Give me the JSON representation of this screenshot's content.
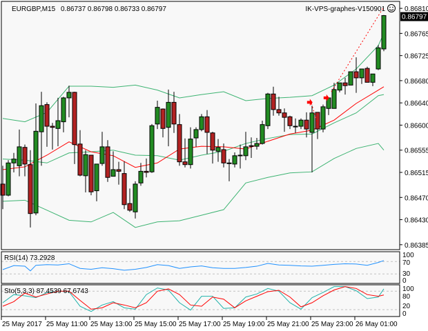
{
  "header": {
    "symbol": "EURGBP,M15",
    "ohlc": "0.86737 0.86798 0.86733 0.86797",
    "expert_name": "IK-VPS-graphes-V150901",
    "expert_icon": "smiley-face-icon"
  },
  "colors": {
    "background": "#f8f8f8",
    "bull_candle": "#228b22",
    "bear_candle": "#b22222",
    "bollinger": "#3cb371",
    "moving_average": "#ff0000",
    "rsi": "#1e90ff",
    "stoch_main": "#20b2aa",
    "stoch_signal": "#ff0000",
    "level_line": "#c0c0c0"
  },
  "chart_data": [
    {
      "type": "candlestick",
      "title": "EURGBP,M15",
      "current_price": "0.86797",
      "y_ticks": [
        "0.86810",
        "0.86765",
        "0.86725",
        "0.86680",
        "0.86640",
        "0.86600",
        "0.86555",
        "0.86515",
        "0.86470",
        "0.86430",
        "0.86385"
      ],
      "x_tick_labels": [
        {
          "index": 0,
          "label": "25 May 2017"
        },
        {
          "index": 8,
          "label": "25 May 11:00"
        },
        {
          "index": 16,
          "label": "25 May 13:00"
        },
        {
          "index": 24,
          "label": "25 May 15:00"
        },
        {
          "index": 32,
          "label": "25 May 17:00"
        },
        {
          "index": 40,
          "label": "25 May 19:00"
        },
        {
          "index": 48,
          "label": "25 May 21:00"
        },
        {
          "index": 56,
          "label": "25 May 23:00"
        },
        {
          "index": 64,
          "label": "26 May 01:00"
        }
      ],
      "candles": [
        [
          0.86494,
          0.86527,
          0.86449,
          0.86474
        ],
        [
          0.86474,
          0.86537,
          0.86472,
          0.86532
        ],
        [
          0.86532,
          0.8655,
          0.86515,
          0.86539
        ],
        [
          0.86527,
          0.86592,
          0.86508,
          0.86561
        ],
        [
          0.8656,
          0.86565,
          0.86508,
          0.8653
        ],
        [
          0.86529,
          0.86555,
          0.86416,
          0.86441
        ],
        [
          0.86442,
          0.86639,
          0.86438,
          0.86589
        ],
        [
          0.86588,
          0.8666,
          0.86527,
          0.86635
        ],
        [
          0.86637,
          0.86641,
          0.86561,
          0.86598
        ],
        [
          0.86598,
          0.86604,
          0.86556,
          0.86596
        ],
        [
          0.86594,
          0.86649,
          0.86562,
          0.86608
        ],
        [
          0.86606,
          0.86651,
          0.86587,
          0.86649
        ],
        [
          0.86649,
          0.86671,
          0.86614,
          0.86659
        ],
        [
          0.86659,
          0.8666,
          0.8653,
          0.86565
        ],
        [
          0.86566,
          0.86591,
          0.86508,
          0.8651
        ],
        [
          0.86509,
          0.86555,
          0.86479,
          0.86547
        ],
        [
          0.86546,
          0.86546,
          0.86474,
          0.8648
        ],
        [
          0.86482,
          0.8653,
          0.86463,
          0.8653
        ],
        [
          0.86531,
          0.86588,
          0.86527,
          0.86561
        ],
        [
          0.86561,
          0.86573,
          0.86498,
          0.86506
        ],
        [
          0.86508,
          0.86553,
          0.86508,
          0.8652
        ],
        [
          0.8652,
          0.86534,
          0.86493,
          0.86517
        ],
        [
          0.86513,
          0.86535,
          0.86449,
          0.86457
        ],
        [
          0.86459,
          0.86486,
          0.86444,
          0.86447
        ],
        [
          0.86444,
          0.86499,
          0.86432,
          0.86494
        ],
        [
          0.86496,
          0.86532,
          0.86491,
          0.86517
        ],
        [
          0.86517,
          0.8654,
          0.86506,
          0.86515
        ],
        [
          0.86516,
          0.86602,
          0.86514,
          0.86599
        ],
        [
          0.86602,
          0.86644,
          0.86593,
          0.86632
        ],
        [
          0.86629,
          0.8663,
          0.86578,
          0.86594
        ],
        [
          0.86596,
          0.86664,
          0.86562,
          0.86641
        ],
        [
          0.86641,
          0.8666,
          0.86586,
          0.86602
        ],
        [
          0.86601,
          0.8662,
          0.86527,
          0.86534
        ],
        [
          0.86534,
          0.86576,
          0.86524,
          0.86529
        ],
        [
          0.86529,
          0.86596,
          0.86522,
          0.86575
        ],
        [
          0.86577,
          0.86596,
          0.86561,
          0.86592
        ],
        [
          0.86592,
          0.8662,
          0.86589,
          0.86615
        ],
        [
          0.86615,
          0.86627,
          0.86548,
          0.86587
        ],
        [
          0.86586,
          0.86588,
          0.86531,
          0.86555
        ],
        [
          0.86553,
          0.86575,
          0.86534,
          0.8656
        ],
        [
          0.86556,
          0.86567,
          0.86524,
          0.86532
        ],
        [
          0.86531,
          0.86539,
          0.86499,
          0.86532
        ],
        [
          0.8653,
          0.86551,
          0.86524,
          0.86545
        ],
        [
          0.86545,
          0.86565,
          0.86522,
          0.86546
        ],
        [
          0.86545,
          0.86588,
          0.86537,
          0.86561
        ],
        [
          0.86562,
          0.86578,
          0.86541,
          0.86563
        ],
        [
          0.86562,
          0.86577,
          0.86556,
          0.86567
        ],
        [
          0.86567,
          0.86608,
          0.86565,
          0.86601
        ],
        [
          0.86599,
          0.86658,
          0.86593,
          0.86656
        ],
        [
          0.86656,
          0.86669,
          0.86617,
          0.86628
        ],
        [
          0.86628,
          0.86651,
          0.86617,
          0.86622
        ],
        [
          0.86622,
          0.8663,
          0.86588,
          0.86614
        ],
        [
          0.86615,
          0.86617,
          0.86593,
          0.86599
        ],
        [
          0.86598,
          0.86612,
          0.86586,
          0.86598
        ],
        [
          0.86598,
          0.86612,
          0.86593,
          0.86609
        ],
        [
          0.86609,
          0.86623,
          0.86578,
          0.86593
        ],
        [
          0.86587,
          0.86635,
          0.86515,
          0.86622
        ],
        [
          0.86623,
          0.86623,
          0.86575,
          0.86593
        ],
        [
          0.86593,
          0.86637,
          0.86587,
          0.86633
        ],
        [
          0.8663,
          0.86649,
          0.86618,
          0.86649
        ],
        [
          0.8663,
          0.86676,
          0.8663,
          0.86664
        ],
        [
          0.86663,
          0.86676,
          0.86659,
          0.86676
        ],
        [
          0.86676,
          0.86685,
          0.86655,
          0.86671
        ],
        [
          0.86672,
          0.86696,
          0.86672,
          0.86696
        ],
        [
          0.86696,
          0.86722,
          0.86658,
          0.86685
        ],
        [
          0.86685,
          0.86701,
          0.86674,
          0.86701
        ],
        [
          0.86702,
          0.86705,
          0.86677,
          0.86677
        ],
        [
          0.86677,
          0.86692,
          0.8667,
          0.86692
        ],
        [
          0.86701,
          0.86744,
          0.86699,
          0.86739
        ],
        [
          0.86737,
          0.86798,
          0.86733,
          0.86797
        ]
      ],
      "overlay_index": [
        0,
        4,
        8,
        12,
        16,
        20,
        24,
        28,
        32,
        36,
        40,
        44,
        48,
        52,
        56,
        60,
        64,
        68,
        69
      ],
      "bollinger_upper": [
        0.86612,
        0.86606,
        0.86623,
        0.8667,
        0.8667,
        0.86668,
        0.86672,
        0.86663,
        0.86649,
        0.86655,
        0.8666,
        0.86644,
        0.86648,
        0.8665,
        0.86653,
        0.86672,
        0.86701,
        0.86743,
        0.86765
      ],
      "bollinger_middle": [
        0.86539,
        0.86537,
        0.86532,
        0.8655,
        0.86552,
        0.86555,
        0.86546,
        0.86545,
        0.86537,
        0.86546,
        0.86553,
        0.86567,
        0.86576,
        0.86583,
        0.86584,
        0.86604,
        0.86622,
        0.86653,
        0.86655
      ],
      "bollinger_lower": [
        0.86463,
        0.86465,
        0.86447,
        0.86429,
        0.86426,
        0.86443,
        0.86416,
        0.86426,
        0.86428,
        0.86438,
        0.86448,
        0.86496,
        0.86506,
        0.86514,
        0.86516,
        0.8654,
        0.86558,
        0.86567,
        0.86555
      ],
      "moving_average": [
        0.8652,
        0.86525,
        0.86546,
        0.8657,
        0.86552,
        0.86545,
        0.86524,
        0.86532,
        0.86557,
        0.86562,
        0.86561,
        0.86557,
        0.86571,
        0.86584,
        0.86591,
        0.86609,
        0.86639,
        0.86663,
        0.86669
      ],
      "signal_arrows": [
        {
          "index": 55.6,
          "price": 0.86641
        },
        {
          "index": 58.6,
          "price": 0.86649
        }
      ],
      "trend_lines": [
        [
          {
            "index": 55.9,
            "price": 0.86639
          },
          {
            "index": 57.1,
            "price": 0.86598
          }
        ],
        [
          {
            "index": 59.5,
            "price": 0.8666
          },
          {
            "index": 68.9,
            "price": 0.86811
          }
        ]
      ]
    },
    {
      "type": "line",
      "title": "RSI(14) 73.2928",
      "y_ticks": [
        "100",
        "70",
        "30",
        "0"
      ],
      "levels": [
        70,
        30
      ],
      "ylim": [
        0,
        100
      ],
      "index": [
        0,
        2,
        4,
        5,
        6,
        8,
        10,
        12,
        14,
        16,
        18,
        20,
        22,
        24,
        26,
        28,
        30,
        32,
        34,
        36,
        38,
        40,
        42,
        44,
        46,
        48,
        50,
        52,
        54,
        56,
        58,
        60,
        62,
        64,
        66,
        68,
        69
      ],
      "values": [
        44,
        57,
        55,
        40,
        58,
        60,
        59,
        63,
        48,
        45,
        50,
        47,
        42,
        45,
        51,
        60,
        57,
        48,
        53,
        56,
        50,
        48,
        48,
        51,
        55,
        64,
        59,
        58,
        56,
        55,
        58,
        61,
        63,
        62,
        58,
        67,
        73.3
      ]
    },
    {
      "type": "line",
      "title": "Sto(5,3,3) 87.4539 67.6743",
      "y_ticks": [
        "100",
        "80",
        "20",
        "0"
      ],
      "levels": [
        80,
        20
      ],
      "ylim": [
        0,
        100
      ],
      "index": [
        0,
        2,
        4,
        6,
        8,
        10,
        12,
        14,
        16,
        18,
        20,
        22,
        24,
        26,
        28,
        30,
        32,
        34,
        36,
        38,
        40,
        42,
        44,
        46,
        48,
        50,
        52,
        54,
        56,
        58,
        60,
        62,
        64,
        66,
        68,
        69
      ],
      "series": [
        {
          "values": [
            42.5,
            69,
            65,
            59,
            75.5,
            80,
            78.5,
            31,
            14,
            35,
            46,
            26,
            21.5,
            69,
            90.5,
            84,
            42.5,
            18.5,
            63.5,
            63.5,
            24,
            26,
            61,
            71,
            89,
            80,
            42.5,
            21.5,
            59,
            76,
            95,
            95,
            81.5,
            56,
            61,
            87.5
          ]
        },
        {
          "values": [
            31,
            46,
            74,
            61,
            71,
            80,
            80,
            50,
            21.5,
            26,
            42.5,
            35,
            26,
            42.5,
            80,
            87.5,
            69,
            35,
            31,
            61,
            54,
            26,
            48.5,
            63.5,
            78.5,
            83,
            61,
            29,
            42.5,
            65,
            84,
            95,
            89,
            69,
            63.5,
            67.7
          ]
        }
      ]
    }
  ]
}
